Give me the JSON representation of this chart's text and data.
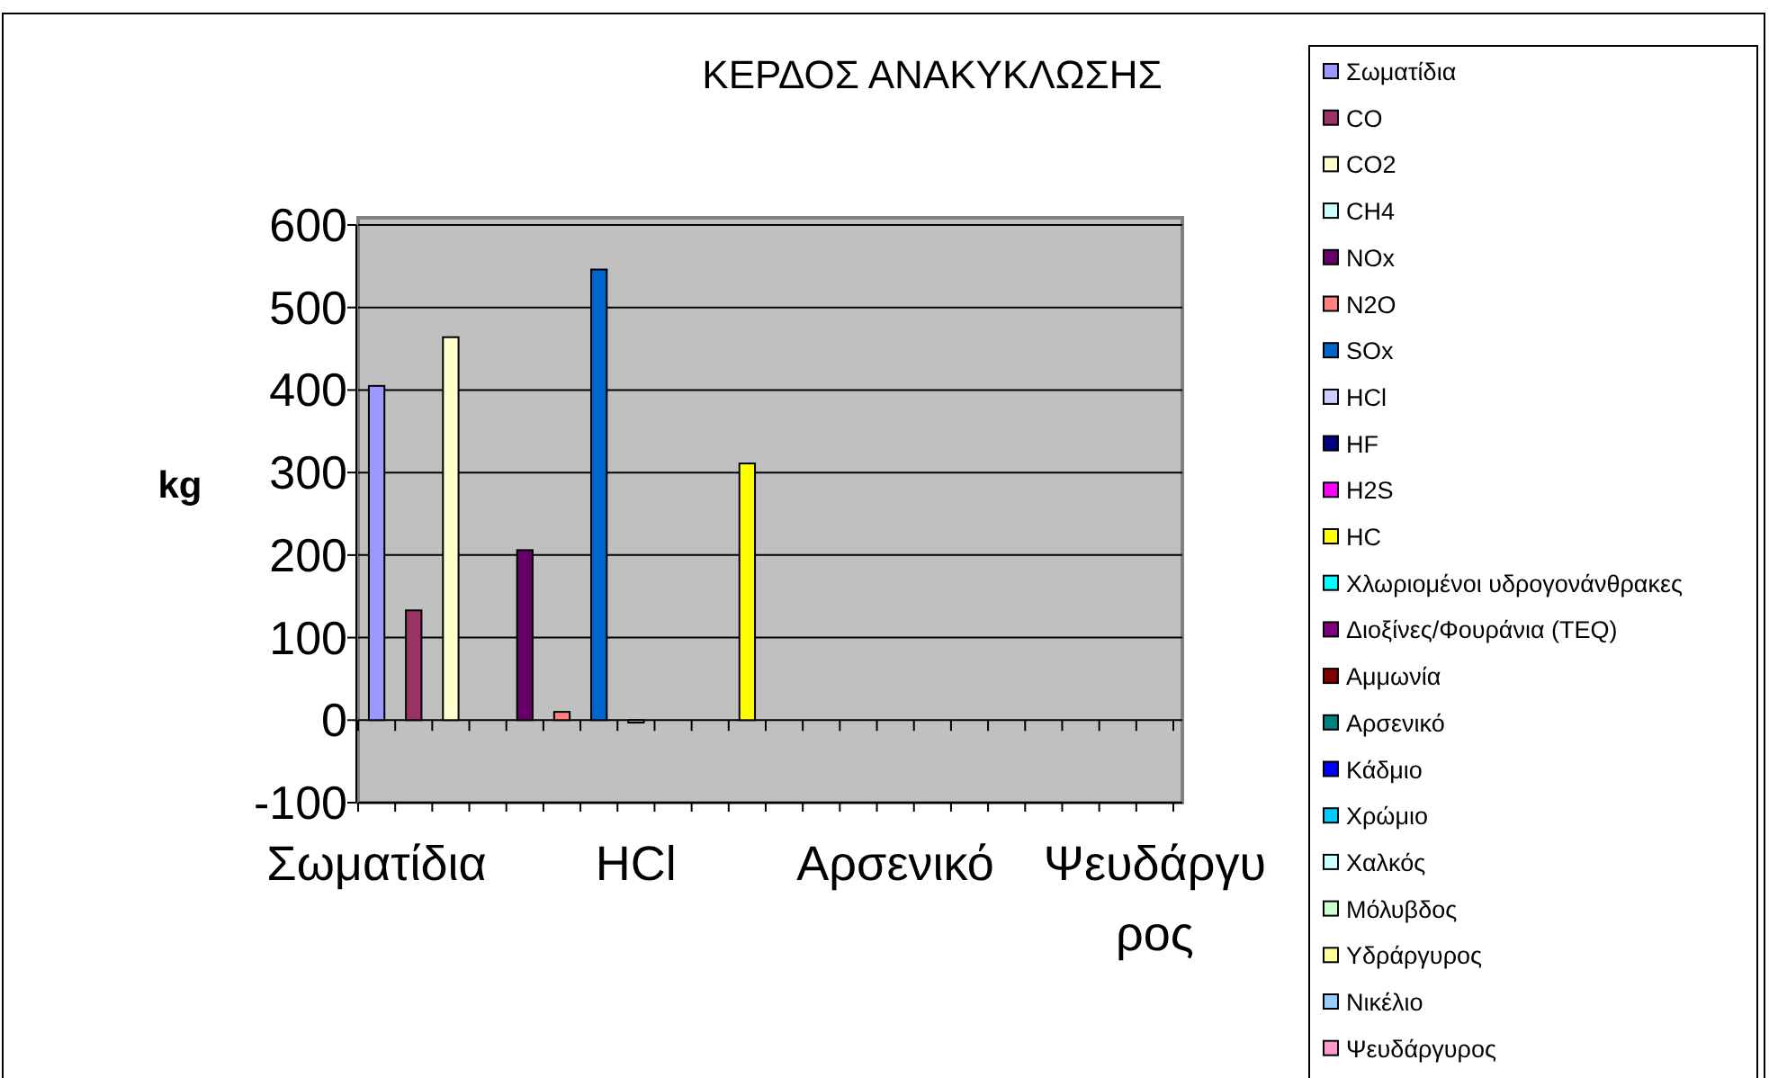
{
  "chart_data": {
    "type": "bar",
    "title": "ΚΕΡΔΟΣ ΑΝΑΚΥΚΛΩΣΗΣ",
    "ylabel": "kg",
    "stacked": true,
    "categories": [
      "Σωματίδια",
      null,
      null,
      null,
      null,
      null,
      null,
      "HCl",
      null,
      null,
      null,
      null,
      null,
      null,
      "Αρσενικό",
      null,
      null,
      null,
      null,
      null,
      null,
      "Ψευδάργυρος"
    ],
    "series": [
      {
        "name": "Σωματίδια",
        "color": "#9999ff",
        "values": [
          405,
          null,
          null,
          null,
          null,
          null,
          null,
          null,
          null,
          null,
          null,
          null,
          null,
          null,
          null,
          null,
          null,
          null,
          null,
          null,
          null,
          null
        ]
      },
      {
        "name": "CO",
        "color": "#993366",
        "values": [
          null,
          133,
          null,
          null,
          null,
          null,
          null,
          null,
          null,
          null,
          null,
          null,
          null,
          null,
          null,
          null,
          null,
          null,
          null,
          null,
          null,
          null
        ]
      },
      {
        "name": "CO2",
        "color": "#ffffcc",
        "values": [
          null,
          null,
          464,
          null,
          null,
          null,
          null,
          null,
          null,
          null,
          null,
          null,
          null,
          null,
          null,
          null,
          null,
          null,
          null,
          null,
          null,
          null
        ]
      },
      {
        "name": "CH4",
        "color": "#ccffff",
        "values": [
          null,
          null,
          null,
          0,
          null,
          null,
          null,
          null,
          null,
          null,
          null,
          null,
          null,
          null,
          null,
          null,
          null,
          null,
          null,
          null,
          null,
          null
        ]
      },
      {
        "name": "NOx",
        "color": "#660066",
        "values": [
          null,
          null,
          null,
          null,
          206,
          null,
          null,
          null,
          null,
          null,
          null,
          null,
          null,
          null,
          null,
          null,
          null,
          null,
          null,
          null,
          null,
          null
        ]
      },
      {
        "name": "N2O",
        "color": "#ff8080",
        "values": [
          null,
          null,
          null,
          null,
          null,
          10,
          null,
          null,
          null,
          null,
          null,
          null,
          null,
          null,
          null,
          null,
          null,
          null,
          null,
          null,
          null,
          null
        ]
      },
      {
        "name": "SOx",
        "color": "#0066cc",
        "values": [
          null,
          null,
          null,
          null,
          null,
          null,
          546,
          null,
          null,
          null,
          null,
          null,
          null,
          null,
          null,
          null,
          null,
          null,
          null,
          null,
          null,
          null
        ]
      },
      {
        "name": "HCl",
        "color": "#ccccff",
        "values": [
          null,
          null,
          null,
          null,
          null,
          null,
          null,
          -3,
          null,
          null,
          null,
          null,
          null,
          null,
          null,
          null,
          null,
          null,
          null,
          null,
          null,
          null
        ]
      },
      {
        "name": "HF",
        "color": "#000080",
        "values": [
          null,
          null,
          null,
          null,
          null,
          null,
          null,
          null,
          0,
          null,
          null,
          null,
          null,
          null,
          null,
          null,
          null,
          null,
          null,
          null,
          null,
          null
        ]
      },
      {
        "name": "H2S",
        "color": "#ff00ff",
        "values": [
          null,
          null,
          null,
          null,
          null,
          null,
          null,
          null,
          null,
          0,
          null,
          null,
          null,
          null,
          null,
          null,
          null,
          null,
          null,
          null,
          null,
          null
        ]
      },
      {
        "name": "HC",
        "color": "#ffff00",
        "values": [
          null,
          null,
          null,
          null,
          null,
          null,
          null,
          null,
          null,
          null,
          311,
          null,
          null,
          null,
          null,
          null,
          null,
          null,
          null,
          null,
          null,
          null
        ]
      },
      {
        "name": "Χλωριομένοι υδρογονάνθρακες",
        "color": "#00ffff",
        "values": [
          null,
          null,
          null,
          null,
          null,
          null,
          null,
          null,
          null,
          null,
          null,
          0,
          null,
          null,
          null,
          null,
          null,
          null,
          null,
          null,
          null,
          null
        ]
      },
      {
        "name": "Διοξίνες/Φουράνια (TEQ)",
        "color": "#800080",
        "values": [
          null,
          null,
          null,
          null,
          null,
          null,
          null,
          null,
          null,
          null,
          null,
          null,
          0,
          null,
          null,
          null,
          null,
          null,
          null,
          null,
          null,
          null
        ]
      },
      {
        "name": "Αμμωνία",
        "color": "#800000",
        "values": [
          null,
          null,
          null,
          null,
          null,
          null,
          null,
          null,
          null,
          null,
          null,
          null,
          null,
          0,
          null,
          null,
          null,
          null,
          null,
          null,
          null,
          null
        ]
      },
      {
        "name": "Αρσενικό",
        "color": "#008080",
        "values": [
          null,
          null,
          null,
          null,
          null,
          null,
          null,
          null,
          null,
          null,
          null,
          null,
          null,
          null,
          0,
          null,
          null,
          null,
          null,
          null,
          null,
          null
        ]
      },
      {
        "name": "Κάδμιο",
        "color": "#0000ff",
        "values": [
          null,
          null,
          null,
          null,
          null,
          null,
          null,
          null,
          null,
          null,
          null,
          null,
          null,
          null,
          null,
          0,
          null,
          null,
          null,
          null,
          null,
          null
        ]
      },
      {
        "name": "Χρώμιο",
        "color": "#00ccff",
        "values": [
          null,
          null,
          null,
          null,
          null,
          null,
          null,
          null,
          null,
          null,
          null,
          null,
          null,
          null,
          null,
          null,
          0,
          null,
          null,
          null,
          null,
          null
        ]
      },
      {
        "name": "Χαλκός",
        "color": "#ccffff",
        "values": [
          null,
          null,
          null,
          null,
          null,
          null,
          null,
          null,
          null,
          null,
          null,
          null,
          null,
          null,
          null,
          null,
          null,
          0,
          null,
          null,
          null,
          null
        ]
      },
      {
        "name": "Μόλυβδος",
        "color": "#ccffcc",
        "values": [
          null,
          null,
          null,
          null,
          null,
          null,
          null,
          null,
          null,
          null,
          null,
          null,
          null,
          null,
          null,
          null,
          null,
          null,
          0,
          null,
          null,
          null
        ]
      },
      {
        "name": "Υδράργυρος",
        "color": "#ffff99",
        "values": [
          null,
          null,
          null,
          null,
          null,
          null,
          null,
          null,
          null,
          null,
          null,
          null,
          null,
          null,
          null,
          null,
          null,
          null,
          null,
          0,
          null,
          null
        ]
      },
      {
        "name": "Νικέλιο",
        "color": "#99ccff",
        "values": [
          null,
          null,
          null,
          null,
          null,
          null,
          null,
          null,
          null,
          null,
          null,
          null,
          null,
          null,
          null,
          null,
          null,
          null,
          null,
          null,
          0,
          null
        ]
      },
      {
        "name": "Ψευδάργυρος",
        "color": "#ff99cc",
        "values": [
          null,
          null,
          null,
          null,
          null,
          null,
          null,
          null,
          null,
          null,
          null,
          null,
          null,
          null,
          null,
          null,
          null,
          null,
          null,
          null,
          null,
          0
        ]
      }
    ],
    "ylim": [
      -100,
      600
    ],
    "yticks": [
      -100,
      0,
      100,
      200,
      300,
      400,
      500,
      600
    ],
    "grid": "y",
    "legend": "right"
  }
}
